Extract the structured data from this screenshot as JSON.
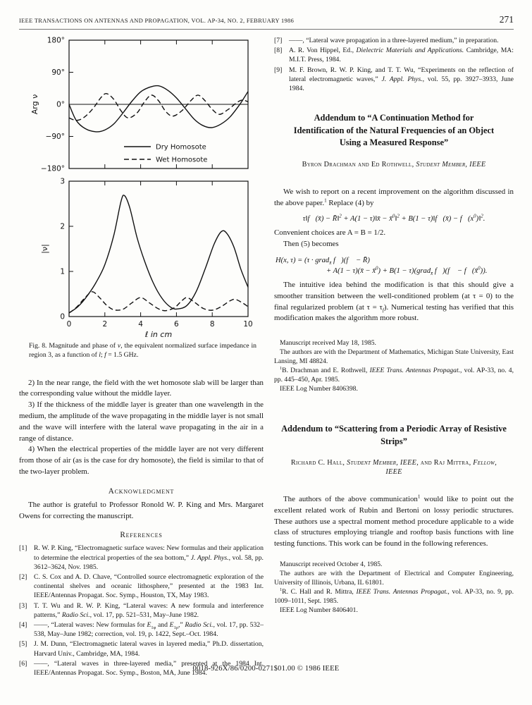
{
  "header": {
    "journal": "IEEE TRANSACTIONS ON ANTENNAS AND PROPAGATION, VOL. AP-34, NO. 2, FEBRUARY 1986",
    "page_number": "271"
  },
  "figure": {
    "caption_segments": [
      {
        "t": "Fig. 8.  Magnitude and phase of "
      },
      {
        "t": "ν",
        "i": true
      },
      {
        "t": ", the equivalent normalized surface impedance in region 3, as a function of "
      },
      {
        "t": "l",
        "i": true
      },
      {
        "t": "; "
      },
      {
        "t": "f",
        "i": true
      },
      {
        "t": " = 1.5 GHz."
      }
    ]
  },
  "chart_data": {
    "type": "line",
    "xlabel": "ℓ in cm",
    "xlim": [
      0,
      10
    ],
    "xticks": [
      0,
      2,
      4,
      6,
      8,
      10
    ],
    "legend": {
      "items": [
        {
          "name": "Dry Homosote",
          "style": "solid"
        },
        {
          "name": "Wet Homosote",
          "style": "dashed"
        }
      ]
    },
    "panels": [
      {
        "ylabel": "Arg ν",
        "ylim": [
          -180,
          180
        ],
        "zero_line": true,
        "yticks": [
          {
            "v": 180,
            "label": "180°"
          },
          {
            "v": 90,
            "label": "90°"
          },
          {
            "v": 0,
            "label": "0°"
          },
          {
            "v": -90,
            "label": "−90°"
          },
          {
            "v": -180,
            "label": "−180°"
          }
        ],
        "series": [
          {
            "name": "Dry Homosote",
            "style": "solid",
            "points": [
              [
                0,
                0
              ],
              [
                0.4,
                -45
              ],
              [
                0.9,
                -68
              ],
              [
                1.5,
                -77
              ],
              [
                2.0,
                -72
              ],
              [
                2.5,
                -55
              ],
              [
                3.0,
                -25
              ],
              [
                3.5,
                8
              ],
              [
                4.0,
                35
              ],
              [
                4.5,
                48
              ],
              [
                5.0,
                52
              ],
              [
                5.5,
                40
              ],
              [
                6.0,
                18
              ],
              [
                6.5,
                -12
              ],
              [
                7.0,
                -42
              ],
              [
                7.5,
                -60
              ],
              [
                8.0,
                -65
              ],
              [
                8.5,
                -55
              ],
              [
                9.0,
                -35
              ],
              [
                9.5,
                -3
              ],
              [
                9.8,
                20
              ],
              [
                10,
                36
              ]
            ]
          },
          {
            "name": "Wet Homosote",
            "style": "dashed",
            "points": [
              [
                0,
                -38
              ],
              [
                0.4,
                -45
              ],
              [
                0.8,
                -38
              ],
              [
                1.3,
                -14
              ],
              [
                1.8,
                20
              ],
              [
                2.1,
                30
              ],
              [
                2.5,
                14
              ],
              [
                2.9,
                -18
              ],
              [
                3.3,
                -38
              ],
              [
                3.8,
                -24
              ],
              [
                4.2,
                6
              ],
              [
                4.6,
                26
              ],
              [
                5.0,
                10
              ],
              [
                5.4,
                -20
              ],
              [
                5.8,
                -33
              ],
              [
                6.3,
                -18
              ],
              [
                6.8,
                10
              ],
              [
                7.2,
                26
              ],
              [
                7.6,
                10
              ],
              [
                8.0,
                -14
              ],
              [
                8.4,
                -28
              ],
              [
                8.9,
                -14
              ],
              [
                9.4,
                6
              ],
              [
                9.7,
                12
              ],
              [
                10,
                7
              ]
            ]
          }
        ]
      },
      {
        "ylabel": "|ν|",
        "ylim": [
          0,
          3
        ],
        "zero_line": false,
        "yticks": [
          {
            "v": 3,
            "label": "3"
          },
          {
            "v": 2,
            "label": "2"
          },
          {
            "v": 1,
            "label": "1"
          },
          {
            "v": 0,
            "label": "0"
          }
        ],
        "series": [
          {
            "name": "Dry Homosote",
            "style": "solid",
            "points": [
              [
                0,
                0.08
              ],
              [
                0.5,
                0.22
              ],
              [
                1.0,
                0.45
              ],
              [
                1.5,
                0.75
              ],
              [
                2.0,
                1.15
              ],
              [
                2.5,
                1.8
              ],
              [
                2.9,
                2.55
              ],
              [
                3.1,
                2.68
              ],
              [
                3.4,
                2.4
              ],
              [
                3.8,
                1.75
              ],
              [
                4.2,
                1.25
              ],
              [
                4.7,
                0.75
              ],
              [
                5.2,
                0.4
              ],
              [
                5.7,
                0.2
              ],
              [
                6.1,
                0.17
              ],
              [
                6.6,
                0.25
              ],
              [
                7.1,
                0.55
              ],
              [
                7.6,
                1.05
              ],
              [
                8.1,
                1.6
              ],
              [
                8.5,
                1.88
              ],
              [
                8.8,
                1.85
              ],
              [
                9.2,
                1.55
              ],
              [
                9.6,
                1.05
              ],
              [
                10,
                0.65
              ]
            ]
          },
          {
            "name": "Wet Homosote",
            "style": "dashed",
            "points": [
              [
                0,
                0.08
              ],
              [
                0.4,
                0.2
              ],
              [
                0.9,
                0.42
              ],
              [
                1.3,
                0.55
              ],
              [
                1.7,
                0.42
              ],
              [
                2.1,
                0.25
              ],
              [
                2.5,
                0.15
              ],
              [
                3.0,
                0.16
              ],
              [
                3.5,
                0.3
              ],
              [
                4.0,
                0.42
              ],
              [
                4.5,
                0.3
              ],
              [
                5.0,
                0.17
              ],
              [
                5.4,
                0.13
              ],
              [
                5.9,
                0.2
              ],
              [
                6.3,
                0.35
              ],
              [
                6.6,
                0.42
              ],
              [
                7.0,
                0.32
              ],
              [
                7.5,
                0.18
              ],
              [
                8.0,
                0.14
              ],
              [
                8.5,
                0.22
              ],
              [
                9.0,
                0.35
              ],
              [
                9.3,
                0.38
              ],
              [
                9.7,
                0.3
              ],
              [
                10,
                0.22
              ]
            ]
          }
        ]
      }
    ]
  },
  "left_column": {
    "paragraphs": [
      "2) In the near range, the field with the wet homosote slab will be larger than the corresponding value without the middle layer.",
      "3) If the thickness of the middle layer is greater than one wavelength in the medium, the amplitude of the wave propagating in the middle layer is not small and the wave will interfere with the lateral wave propagating in the air in a range of distance.",
      "4) When the electrical properties of the middle layer are not very different from those of air (as is the case for dry homosote), the field is similar to that of the two-layer problem."
    ],
    "acknowledgment_heading": "Acknowledgment",
    "acknowledgment_text": "The author is grateful to Professor Ronold W. P. King and Mrs. Margaret Owens for correcting the manuscript.",
    "references_heading": "References"
  },
  "references": [
    {
      "label": "[1]",
      "segments": [
        {
          "t": "R. W. P. King, “Electromagnetic surface waves: New formulas and their application to determine the electrical properties of the sea bottom,” "
        },
        {
          "t": "J. Appl. Phys.",
          "i": true
        },
        {
          "t": ", vol. 58, pp. 3612–3624, Nov. 1985."
        }
      ]
    },
    {
      "label": "[2]",
      "segments": [
        {
          "t": "C. S. Cox and A. D. Chave, “Controlled source electromagnetic exploration of the continental shelves and oceanic lithosphere,” presented at the 1983 Int. IEEE/Antennas Propagat. Soc. Symp., Houston, TX, May 1983."
        }
      ]
    },
    {
      "label": "[3]",
      "segments": [
        {
          "t": "T. T. Wu and R. W. P. King, “Lateral waves: A new formula and interference patterns,” "
        },
        {
          "t": "Radio Sci.",
          "i": true
        },
        {
          "t": ", vol. 17, pp. 521–531, May–June 1982."
        }
      ]
    },
    {
      "label": "[4]",
      "segments": [
        {
          "t": "——, “Lateral waves: New formulas for "
        },
        {
          "t": "E",
          "i": true
        },
        {
          "t": "1φ",
          "sub": true
        },
        {
          "t": " and "
        },
        {
          "t": "E",
          "i": true
        },
        {
          "t": "1ρ",
          "sub": true
        },
        {
          "t": ",” "
        },
        {
          "t": "Radio Sci.",
          "i": true
        },
        {
          "t": ", vol. 17, pp. 532–538, May–June 1982; correction, vol. 19, p. 1422, Sept.–Oct. 1984."
        }
      ]
    },
    {
      "label": "[5]",
      "segments": [
        {
          "t": "J. M. Dunn, “Electromagnetic lateral waves in layered media,” Ph.D. dissertation, Harvard Univ., Cambridge, MA, 1984."
        }
      ]
    },
    {
      "label": "[6]",
      "segments": [
        {
          "t": "——, “Lateral waves in three-layered media,” presented at the 1984 Int. IEEE/Antennas Propagat. Soc. Symp., Boston, MA, June 1984."
        }
      ]
    },
    {
      "label": "[7]",
      "segments": [
        {
          "t": "——, “Lateral wave propagation in a three-layered medium,” in preparation."
        }
      ]
    },
    {
      "label": "[8]",
      "segments": [
        {
          "t": "A. R. Von Hippel, Ed., "
        },
        {
          "t": "Dielectric Materials and Applications.",
          "i": true
        },
        {
          "t": " Cambridge, MA: M.I.T. Press, 1984."
        }
      ]
    },
    {
      "label": "[9]",
      "segments": [
        {
          "t": "M. F. Brown, R. W. P. King, and T. T. Wu, “Experiments on the reflection of lateral electromagnetic waves,” "
        },
        {
          "t": "J. Appl. Phys.",
          "i": true
        },
        {
          "t": ", vol. 55, pp. 3927–3933, June 1984."
        }
      ]
    }
  ],
  "addendum1": {
    "title": "Addendum to “A Continuation Method for Identification of the Natural Frequencies of an Object Using a Measured Response”",
    "authors_segments": [
      {
        "t": "Byron Drachman and Ed Rothwell, "
      },
      {
        "t": "Student Member, IEEE",
        "i": true
      }
    ],
    "intro_segments": [
      {
        "t": "We wish to report on a recent improvement on the algorithm discussed in the above paper."
      },
      {
        "t": "1",
        "sup": true
      },
      {
        "t": " Replace (4) by"
      }
    ],
    "eq1_segments": [
      {
        "t": "τ‖f⃗(x̄) − R̄‖",
        "i": true
      },
      {
        "t": "2",
        "sup": true
      },
      {
        "t": " + A(1 − τ)‖x̄ − x̄",
        "i": true
      },
      {
        "t": "0",
        "sup": true
      },
      {
        "t": "‖",
        "i": true
      },
      {
        "t": "2",
        "sup": true
      },
      {
        "t": " + B(1 − τ)‖f⃗(x̄) − f⃗(x",
        "i": true
      },
      {
        "t": "0",
        "sup": true
      },
      {
        "t": ")‖",
        "i": true
      },
      {
        "t": "2",
        "sup": true
      },
      {
        "t": ".",
        "i": true
      }
    ],
    "choices": "Convenient choices are A = B = 1/2.",
    "then_text": "Then (5) becomes",
    "eq2_line1_segments": [
      {
        "t": "H(x, τ) = (τ · grad",
        "i": true
      },
      {
        "t": "x̄",
        "sub": true,
        "i": true
      },
      {
        "t": " f⃗)(f⃗ − R̄)",
        "i": true
      }
    ],
    "eq2_line2_segments": [
      {
        "t": "+ A(1 − τ)(x̄ − x̄",
        "i": true
      },
      {
        "t": "0",
        "sup": true
      },
      {
        "t": ") + B(1 − τ)(grad",
        "i": true
      },
      {
        "t": "x̄",
        "sub": true,
        "i": true
      },
      {
        "t": " f⃗)(f⃗ − f⃗(x̄",
        "i": true
      },
      {
        "t": "0",
        "sup": true
      },
      {
        "t": ")).",
        "i": true
      }
    ],
    "discussion_segments": [
      {
        "t": "The intuitive idea behind the modification is that this should give a smoother transition between the well-conditioned problem (at τ = 0) to the final regularized problem (at τ = τ"
      },
      {
        "t": "f",
        "sub": true,
        "i": true
      },
      {
        "t": "). Numerical testing has verified that this modification makes the algorithm more robust."
      }
    ],
    "footnotes": [
      [
        {
          "t": "Manuscript received May 18, 1985."
        }
      ],
      [
        {
          "t": "The authors are with the Department of Mathematics, Michigan State University, East Lansing, MI 48824."
        }
      ],
      [
        {
          "t": "1",
          "sup": true
        },
        {
          "t": "B. Drachman and E. Rothwell, "
        },
        {
          "t": "IEEE Trans. Antennas Propagat.",
          "i": true
        },
        {
          "t": ", vol. AP-33, no. 4, pp. 445–450, Apr. 1985."
        }
      ],
      [
        {
          "t": "IEEE Log Number 8406398."
        }
      ]
    ]
  },
  "addendum2": {
    "title": "Addendum to “Scattering from a Periodic Array of Resistive Strips”",
    "authors_segments": [
      {
        "t": "Richard C. Hall, "
      },
      {
        "t": "Student Member, IEEE",
        "i": true
      },
      {
        "t": ", and Raj Mittra, "
      },
      {
        "t": "Fellow, IEEE",
        "i": true
      }
    ],
    "body_segments": [
      {
        "t": "The authors of the above communication"
      },
      {
        "t": "1",
        "sup": true
      },
      {
        "t": " would like to point out the excellent related work of Rubin and Bertoni on lossy periodic structures. These authors use a spectral moment method procedure applicable to a wide class of structures employing triangle and rooftop basis functions with line testing functions. This work can be found in the following references."
      }
    ],
    "footnotes": [
      [
        {
          "t": "Manuscript received October 4, 1985."
        }
      ],
      [
        {
          "t": "The authors are with the Department of Electrical and Computer Engineering, University of Illinois, Urbana, IL 61801."
        }
      ],
      [
        {
          "t": "1",
          "sup": true
        },
        {
          "t": "R. C. Hall and R. Mittra, "
        },
        {
          "t": "IEEE Trans. Antennas Propagat.",
          "i": true
        },
        {
          "t": ", vol. AP-33, no. 9, pp. 1009–1011, Sept. 1985."
        }
      ],
      [
        {
          "t": "IEEE Log Number 8406401."
        }
      ]
    ]
  },
  "footer": {
    "copyright": "0018-926X/86/0200-0271$01.00  © 1986 IEEE"
  }
}
